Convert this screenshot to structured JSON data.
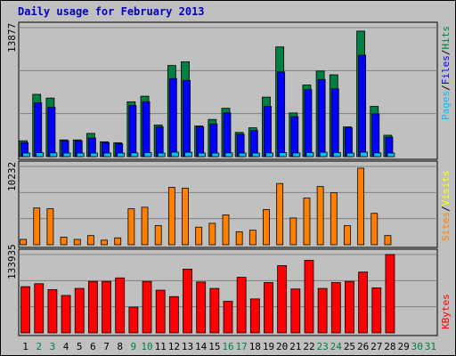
{
  "title": "Daily usage for February 2013",
  "colors": {
    "background": "#c0c0c0",
    "hits": "#008040",
    "files": "#0000ff",
    "pages": "#00c0ff",
    "visits": "#ffff00",
    "sites": "#ff8000",
    "kbytes": "#ff0000",
    "title": "#0000c0",
    "weekend_day": "#008040",
    "weekday_day": "#000000"
  },
  "chart_data": [
    {
      "type": "bar",
      "panel": "top",
      "legend_labels": [
        "Pages",
        "Files",
        "Hits"
      ],
      "legend_separator": "/",
      "max_label": "13877",
      "ylim": [
        0,
        13877
      ],
      "categories": [
        "1",
        "2",
        "3",
        "4",
        "5",
        "6",
        "7",
        "8",
        "9",
        "10",
        "11",
        "12",
        "13",
        "14",
        "15",
        "16",
        "17",
        "18",
        "19",
        "20",
        "21",
        "22",
        "23",
        "24",
        "25",
        "26",
        "27",
        "28",
        "29",
        "30",
        "31"
      ],
      "series": [
        {
          "name": "Hits",
          "values": [
            1700,
            6700,
            6300,
            1800,
            1800,
            2500,
            1600,
            1500,
            5900,
            6500,
            3400,
            9800,
            10200,
            3300,
            4000,
            5200,
            2600,
            3100,
            6400,
            11800,
            4700,
            7700,
            9200,
            8800,
            3200,
            13500,
            5400,
            2300,
            0,
            0,
            0
          ]
        },
        {
          "name": "Files",
          "values": [
            1500,
            5800,
            5300,
            1700,
            1700,
            2000,
            1500,
            1400,
            5500,
            5900,
            3200,
            8400,
            8200,
            3200,
            3500,
            4700,
            2400,
            2800,
            5400,
            9100,
            4300,
            7200,
            8300,
            7300,
            3100,
            10900,
            4600,
            2100,
            0,
            0,
            0
          ]
        },
        {
          "name": "Pages",
          "values": [
            380,
            420,
            400,
            380,
            370,
            370,
            370,
            360,
            400,
            430,
            380,
            480,
            470,
            380,
            380,
            400,
            360,
            380,
            400,
            430,
            390,
            440,
            470,
            440,
            380,
            480,
            400,
            370,
            0,
            0,
            0
          ]
        }
      ]
    },
    {
      "type": "bar",
      "panel": "middle",
      "legend_labels": [
        "Sites",
        "Visits"
      ],
      "legend_separator": "/",
      "max_label": "10232",
      "ylim": [
        0,
        10232
      ],
      "categories": [
        "1",
        "2",
        "3",
        "4",
        "5",
        "6",
        "7",
        "8",
        "9",
        "10",
        "11",
        "12",
        "13",
        "14",
        "15",
        "16",
        "17",
        "18",
        "19",
        "20",
        "21",
        "22",
        "23",
        "24",
        "25",
        "26",
        "27",
        "28",
        "29",
        "30",
        "31"
      ],
      "series": [
        {
          "name": "Visits",
          "values": [
            700,
            4800,
            4700,
            1000,
            700,
            1200,
            600,
            900,
            4700,
            4900,
            2500,
            7500,
            7400,
            2300,
            2800,
            3900,
            1700,
            1900,
            4600,
            8000,
            3500,
            6100,
            7600,
            6800,
            2500,
            10000,
            4100,
            1200,
            0,
            0,
            0
          ]
        },
        {
          "name": "Sites",
          "values": [
            120,
            130,
            130,
            110,
            100,
            110,
            100,
            100,
            130,
            140,
            110,
            150,
            150,
            110,
            110,
            120,
            100,
            110,
            130,
            150,
            120,
            140,
            150,
            140,
            110,
            160,
            120,
            100,
            0,
            0,
            0
          ]
        }
      ]
    },
    {
      "type": "bar",
      "panel": "bottom",
      "legend_labels": [
        "KBytes"
      ],
      "max_label": "133935",
      "ylim": [
        0,
        133935
      ],
      "categories": [
        "1",
        "2",
        "3",
        "4",
        "5",
        "6",
        "7",
        "8",
        "9",
        "10",
        "11",
        "12",
        "13",
        "14",
        "15",
        "16",
        "17",
        "18",
        "19",
        "20",
        "21",
        "22",
        "23",
        "24",
        "25",
        "26",
        "27",
        "28",
        "29",
        "30",
        "31"
      ],
      "series": [
        {
          "name": "KBytes",
          "values": [
            79000,
            84000,
            74000,
            64000,
            76000,
            88000,
            88000,
            94000,
            44000,
            88000,
            73000,
            62000,
            109000,
            87000,
            76000,
            54000,
            95000,
            58000,
            86000,
            115000,
            75000,
            124000,
            76000,
            86000,
            88000,
            104000,
            77000,
            134000,
            0,
            0,
            0
          ]
        }
      ]
    }
  ],
  "day_labels": [
    {
      "text": "1",
      "weekend": false
    },
    {
      "text": "2",
      "weekend": true
    },
    {
      "text": "3",
      "weekend": true
    },
    {
      "text": "4",
      "weekend": false
    },
    {
      "text": "5",
      "weekend": false
    },
    {
      "text": "6",
      "weekend": false
    },
    {
      "text": "7",
      "weekend": false
    },
    {
      "text": "8",
      "weekend": false
    },
    {
      "text": "9",
      "weekend": true
    },
    {
      "text": "10",
      "weekend": true
    },
    {
      "text": "11",
      "weekend": false
    },
    {
      "text": "12",
      "weekend": false
    },
    {
      "text": "13",
      "weekend": false
    },
    {
      "text": "14",
      "weekend": false
    },
    {
      "text": "15",
      "weekend": false
    },
    {
      "text": "16",
      "weekend": true
    },
    {
      "text": "17",
      "weekend": true
    },
    {
      "text": "18",
      "weekend": false
    },
    {
      "text": "19",
      "weekend": false
    },
    {
      "text": "20",
      "weekend": false
    },
    {
      "text": "21",
      "weekend": false
    },
    {
      "text": "22",
      "weekend": false
    },
    {
      "text": "23",
      "weekend": true
    },
    {
      "text": "24",
      "weekend": true
    },
    {
      "text": "25",
      "weekend": false
    },
    {
      "text": "26",
      "weekend": false
    },
    {
      "text": "27",
      "weekend": false
    },
    {
      "text": "28",
      "weekend": false
    },
    {
      "text": "29",
      "weekend": false
    },
    {
      "text": "30",
      "weekend": true
    },
    {
      "text": "31",
      "weekend": true
    }
  ]
}
